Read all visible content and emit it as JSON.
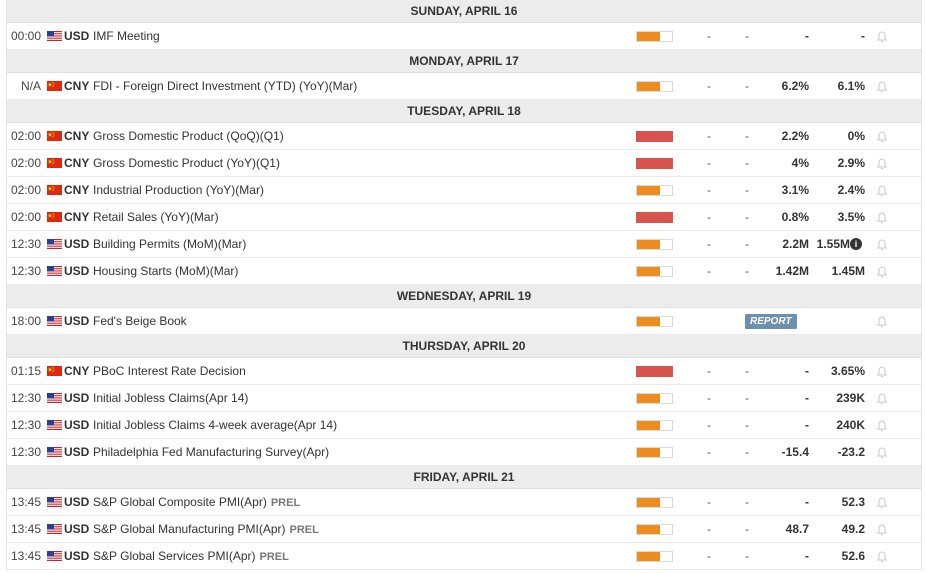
{
  "colors": {
    "medium": "#ef8c1f",
    "high": "#d9534f",
    "report_bg": "#6d8fb0"
  },
  "days": [
    {
      "label": "SUNDAY, APRIL 16",
      "events": [
        {
          "time": "00:00",
          "flag": "us-flag-icon",
          "currency": "USD",
          "event": "IMF Meeting",
          "prel": "",
          "impact": "medium",
          "actual": "-",
          "forecast": "-",
          "previous": "-",
          "consensus": "-",
          "info": false,
          "report": ""
        }
      ]
    },
    {
      "label": "MONDAY, APRIL 17",
      "events": [
        {
          "time": "N/A",
          "flag": "cn-flag-icon",
          "currency": "CNY",
          "event": "FDI - Foreign Direct Investment (YTD) (YoY)(Mar)",
          "prel": "",
          "impact": "medium",
          "actual": "-",
          "forecast": "-",
          "previous": "6.2%",
          "consensus": "6.1%",
          "info": false,
          "report": ""
        }
      ]
    },
    {
      "label": "TUESDAY, APRIL 18",
      "events": [
        {
          "time": "02:00",
          "flag": "cn-flag-icon",
          "currency": "CNY",
          "event": "Gross Domestic Product (QoQ)(Q1)",
          "prel": "",
          "impact": "high",
          "actual": "-",
          "forecast": "-",
          "previous": "2.2%",
          "consensus": "0%",
          "info": false,
          "report": ""
        },
        {
          "time": "02:00",
          "flag": "cn-flag-icon",
          "currency": "CNY",
          "event": "Gross Domestic Product (YoY)(Q1)",
          "prel": "",
          "impact": "high",
          "actual": "-",
          "forecast": "-",
          "previous": "4%",
          "consensus": "2.9%",
          "info": false,
          "report": ""
        },
        {
          "time": "02:00",
          "flag": "cn-flag-icon",
          "currency": "CNY",
          "event": "Industrial Production (YoY)(Mar)",
          "prel": "",
          "impact": "medium",
          "actual": "-",
          "forecast": "-",
          "previous": "3.1%",
          "consensus": "2.4%",
          "info": false,
          "report": ""
        },
        {
          "time": "02:00",
          "flag": "cn-flag-icon",
          "currency": "CNY",
          "event": "Retail Sales (YoY)(Mar)",
          "prel": "",
          "impact": "high",
          "actual": "-",
          "forecast": "-",
          "previous": "0.8%",
          "consensus": "3.5%",
          "info": false,
          "report": ""
        },
        {
          "time": "12:30",
          "flag": "us-flag-icon",
          "currency": "USD",
          "event": "Building Permits (MoM)(Mar)",
          "prel": "",
          "impact": "medium",
          "actual": "-",
          "forecast": "-",
          "previous": "2.2M",
          "consensus": "1.55M",
          "info": true,
          "report": ""
        },
        {
          "time": "12:30",
          "flag": "us-flag-icon",
          "currency": "USD",
          "event": "Housing Starts (MoM)(Mar)",
          "prel": "",
          "impact": "medium",
          "actual": "-",
          "forecast": "-",
          "previous": "1.42M",
          "consensus": "1.45M",
          "info": false,
          "report": ""
        }
      ]
    },
    {
      "label": "WEDNESDAY, APRIL 19",
      "events": [
        {
          "time": "18:00",
          "flag": "us-flag-icon",
          "currency": "USD",
          "event": "Fed's Beige Book",
          "prel": "",
          "impact": "medium",
          "actual": "",
          "forecast": "",
          "previous": "",
          "consensus": "",
          "info": false,
          "report": "REPORT"
        }
      ]
    },
    {
      "label": "THURSDAY, APRIL 20",
      "events": [
        {
          "time": "01:15",
          "flag": "cn-flag-icon",
          "currency": "CNY",
          "event": "PBoC Interest Rate Decision",
          "prel": "",
          "impact": "high",
          "actual": "-",
          "forecast": "-",
          "previous": "-",
          "consensus": "3.65%",
          "info": false,
          "report": ""
        },
        {
          "time": "12:30",
          "flag": "us-flag-icon",
          "currency": "USD",
          "event": "Initial Jobless Claims(Apr 14)",
          "prel": "",
          "impact": "medium",
          "actual": "-",
          "forecast": "-",
          "previous": "-",
          "consensus": "239K",
          "info": false,
          "report": ""
        },
        {
          "time": "12:30",
          "flag": "us-flag-icon",
          "currency": "USD",
          "event": "Initial Jobless Claims 4-week average(Apr 14)",
          "prel": "",
          "impact": "medium",
          "actual": "-",
          "forecast": "-",
          "previous": "-",
          "consensus": "240K",
          "info": false,
          "report": ""
        },
        {
          "time": "12:30",
          "flag": "us-flag-icon",
          "currency": "USD",
          "event": "Philadelphia Fed Manufacturing Survey(Apr)",
          "prel": "",
          "impact": "medium",
          "actual": "-",
          "forecast": "-",
          "previous": "-15.4",
          "consensus": "-23.2",
          "info": false,
          "report": ""
        }
      ]
    },
    {
      "label": "FRIDAY, APRIL 21",
      "events": [
        {
          "time": "13:45",
          "flag": "us-flag-icon",
          "currency": "USD",
          "event": "S&P Global Composite PMI(Apr)",
          "prel": "PREL",
          "impact": "medium",
          "actual": "-",
          "forecast": "-",
          "previous": "-",
          "consensus": "52.3",
          "info": false,
          "report": ""
        },
        {
          "time": "13:45",
          "flag": "us-flag-icon",
          "currency": "USD",
          "event": "S&P Global Manufacturing PMI(Apr)",
          "prel": "PREL",
          "impact": "medium",
          "actual": "-",
          "forecast": "-",
          "previous": "48.7",
          "consensus": "49.2",
          "info": false,
          "report": ""
        },
        {
          "time": "13:45",
          "flag": "us-flag-icon",
          "currency": "USD",
          "event": "S&P Global Services PMI(Apr)",
          "prel": "PREL",
          "impact": "medium",
          "actual": "-",
          "forecast": "-",
          "previous": "-",
          "consensus": "52.6",
          "info": false,
          "report": ""
        }
      ]
    }
  ]
}
